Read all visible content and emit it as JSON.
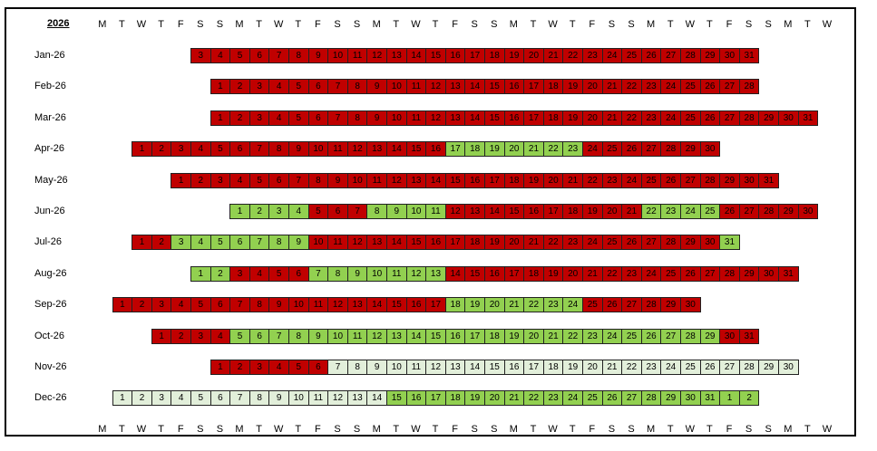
{
  "title": "2026",
  "weekday_headers": [
    "M",
    "T",
    "W",
    "T",
    "F",
    "S",
    "S",
    "M",
    "T",
    "W",
    "T",
    "F",
    "S",
    "S",
    "M",
    "T",
    "W",
    "T",
    "F",
    "S",
    "S",
    "M",
    "T",
    "W",
    "T",
    "F",
    "S",
    "S",
    "M",
    "T",
    "W",
    "T",
    "F",
    "S",
    "S",
    "M",
    "T",
    "W"
  ],
  "colors": {
    "red": "#c00000",
    "green": "#92d050",
    "light_green": "#e2efda"
  },
  "months": [
    {
      "label": "Jan-26",
      "start_col": 5,
      "days": [
        "3",
        "4",
        "5",
        "6",
        "7",
        "8",
        "9",
        "10",
        "11",
        "12",
        "13",
        "14",
        "15",
        "16",
        "17",
        "18",
        "19",
        "20",
        "21",
        "22",
        "23",
        "24",
        "25",
        "26",
        "27",
        "28",
        "29",
        "30",
        "31"
      ],
      "status": "RRRRRRRRRRRRRRRRRRRRRRRRRRRRR"
    },
    {
      "label": "Feb-26",
      "start_col": 6,
      "days": [
        "1",
        "2",
        "3",
        "4",
        "5",
        "6",
        "7",
        "8",
        "9",
        "10",
        "11",
        "12",
        "13",
        "14",
        "15",
        "16",
        "17",
        "18",
        "19",
        "20",
        "21",
        "22",
        "23",
        "24",
        "25",
        "26",
        "27",
        "28"
      ],
      "status": "RRRRRRRRRRRRRRRRRRRRRRRRRRRR"
    },
    {
      "label": "Mar-26",
      "start_col": 6,
      "days": [
        "1",
        "2",
        "3",
        "4",
        "5",
        "6",
        "7",
        "8",
        "9",
        "10",
        "11",
        "12",
        "13",
        "14",
        "15",
        "16",
        "17",
        "18",
        "19",
        "20",
        "21",
        "22",
        "23",
        "24",
        "25",
        "26",
        "27",
        "28",
        "29",
        "30",
        "31"
      ],
      "status": "RRRRRRRRRRRRRRRRRRRRRRRRRRRRRRR"
    },
    {
      "label": "Apr-26",
      "start_col": 2,
      "days": [
        "1",
        "2",
        "3",
        "4",
        "5",
        "6",
        "7",
        "8",
        "9",
        "10",
        "11",
        "12",
        "13",
        "14",
        "15",
        "16",
        "17",
        "18",
        "19",
        "20",
        "21",
        "22",
        "23",
        "24",
        "25",
        "26",
        "27",
        "28",
        "29",
        "30"
      ],
      "status": "RRRRRRRRRRRRRRRRGGGGGGGRRRRRRR"
    },
    {
      "label": "May-26",
      "start_col": 4,
      "days": [
        "1",
        "2",
        "3",
        "4",
        "5",
        "6",
        "7",
        "8",
        "9",
        "10",
        "11",
        "12",
        "13",
        "14",
        "15",
        "16",
        "17",
        "18",
        "19",
        "20",
        "21",
        "22",
        "23",
        "24",
        "25",
        "26",
        "27",
        "28",
        "29",
        "30",
        "31"
      ],
      "status": "RRRRRRRRRRRRRRRRRRRRRRRRRRRRRRR"
    },
    {
      "label": "Jun-26",
      "start_col": 7,
      "days": [
        "1",
        "2",
        "3",
        "4",
        "5",
        "6",
        "7",
        "8",
        "9",
        "10",
        "11",
        "12",
        "13",
        "14",
        "15",
        "16",
        "17",
        "18",
        "19",
        "20",
        "21",
        "22",
        "23",
        "24",
        "25",
        "26",
        "27",
        "28",
        "29",
        "30"
      ],
      "status": "GGGGRRRGGGGRRRRRRRRRRGGGGRRRRR"
    },
    {
      "label": "Jul-26",
      "start_col": 2,
      "days": [
        "1",
        "2",
        "3",
        "4",
        "5",
        "6",
        "7",
        "8",
        "9",
        "10",
        "11",
        "12",
        "13",
        "14",
        "15",
        "16",
        "17",
        "18",
        "19",
        "20",
        "21",
        "22",
        "23",
        "24",
        "25",
        "26",
        "27",
        "28",
        "29",
        "30",
        "31"
      ],
      "status": "RRGGGGGGGRRRRRRRRRRRRRRRRRRRRRG"
    },
    {
      "label": "Aug-26",
      "start_col": 5,
      "days": [
        "1",
        "2",
        "3",
        "4",
        "5",
        "6",
        "7",
        "8",
        "9",
        "10",
        "11",
        "12",
        "13",
        "14",
        "15",
        "16",
        "17",
        "18",
        "19",
        "20",
        "21",
        "22",
        "23",
        "24",
        "25",
        "26",
        "27",
        "28",
        "29",
        "30",
        "31"
      ],
      "status": "GGRRRRGGGGGGGRRRRRRRRRRRRRRRRRR"
    },
    {
      "label": "Sep-26",
      "start_col": 1,
      "days": [
        "1",
        "2",
        "3",
        "4",
        "5",
        "6",
        "7",
        "8",
        "9",
        "10",
        "11",
        "12",
        "13",
        "14",
        "15",
        "16",
        "17",
        "18",
        "19",
        "20",
        "21",
        "22",
        "23",
        "24",
        "25",
        "26",
        "27",
        "28",
        "29",
        "30"
      ],
      "status": "RRRRRRRRRRRRRRRRRGGGGGGGRRRRRR"
    },
    {
      "label": "Oct-26",
      "start_col": 3,
      "days": [
        "1",
        "2",
        "3",
        "4",
        "5",
        "6",
        "7",
        "8",
        "9",
        "10",
        "11",
        "12",
        "13",
        "14",
        "15",
        "16",
        "17",
        "18",
        "19",
        "20",
        "21",
        "22",
        "23",
        "24",
        "25",
        "26",
        "27",
        "28",
        "29",
        "30",
        "31"
      ],
      "status": "RRRRGGGGGGGGGGGGGGGGGGGGGGGGGRR"
    },
    {
      "label": "Nov-26",
      "start_col": 6,
      "days": [
        "1",
        "2",
        "3",
        "4",
        "5",
        "6",
        "7",
        "8",
        "9",
        "10",
        "11",
        "12",
        "13",
        "14",
        "15",
        "16",
        "17",
        "18",
        "19",
        "20",
        "21",
        "22",
        "23",
        "24",
        "25",
        "26",
        "27",
        "28",
        "29",
        "30"
      ],
      "status": "RRRRRRLLLLLLLLLLLLLLLLLLLLLLLL"
    },
    {
      "label": "Dec-26",
      "start_col": 1,
      "days": [
        "1",
        "2",
        "3",
        "4",
        "5",
        "6",
        "7",
        "8",
        "9",
        "10",
        "11",
        "12",
        "13",
        "14",
        "15",
        "16",
        "17",
        "18",
        "19",
        "20",
        "21",
        "22",
        "23",
        "24",
        "25",
        "26",
        "27",
        "28",
        "29",
        "30",
        "31",
        "1",
        "2"
      ],
      "status": "LLLLLLLLLLLLLLGGGGGGGGGGGGGGGGGGG"
    }
  ]
}
